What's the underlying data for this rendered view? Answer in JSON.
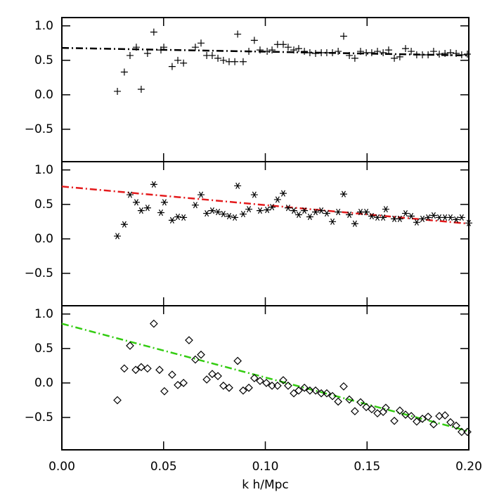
{
  "chart_data": [
    {
      "type": "scatter",
      "marker": "plus",
      "color": "#000000",
      "xlim": [
        0,
        0.2
      ],
      "ylim": [
        -0.97,
        1.12
      ],
      "xticks": [
        {
          "value": 0,
          "label": "0.00"
        },
        {
          "value": 0.05,
          "label": "0.05"
        },
        {
          "value": 0.1,
          "label": "0.10"
        },
        {
          "value": 0.15,
          "label": "0.15"
        },
        {
          "value": 0.2,
          "label": "0.20"
        }
      ],
      "yticks": [
        {
          "value": -0.5,
          "label": "−0.5"
        },
        {
          "value": 0,
          "label": "0.0"
        },
        0.5,
        {
          "value": 1,
          "label": "1.0"
        }
      ],
      "x": [
        0.0273,
        0.0307,
        0.0335,
        0.0366,
        0.039,
        0.0421,
        0.0452,
        0.0487,
        0.0501,
        0.0542,
        0.057,
        0.0598,
        0.0656,
        0.0684,
        0.0712,
        0.0739,
        0.0767,
        0.0794,
        0.0822,
        0.085,
        0.0864,
        0.0891,
        0.0919,
        0.0946,
        0.0974,
        0.1009,
        0.1033,
        0.106,
        0.1088,
        0.1112,
        0.114,
        0.1164,
        0.1192,
        0.1219,
        0.1247,
        0.1275,
        0.1302,
        0.133,
        0.1358,
        0.1385,
        0.1413,
        0.144,
        0.1468,
        0.1496,
        0.1523,
        0.1551,
        0.1579,
        0.1606,
        0.1634,
        0.1661,
        0.1689,
        0.1717,
        0.1744,
        0.1772,
        0.18,
        0.1827,
        0.1855,
        0.1883,
        0.191,
        0.1938,
        0.1965,
        0.1993
      ],
      "values": [
        0.05,
        0.33,
        0.57,
        0.69,
        0.08,
        0.6,
        0.91,
        0.65,
        0.69,
        0.41,
        0.5,
        0.46,
        0.69,
        0.75,
        0.57,
        0.57,
        0.53,
        0.5,
        0.48,
        0.48,
        0.88,
        0.48,
        0.63,
        0.79,
        0.65,
        0.63,
        0.65,
        0.73,
        0.73,
        0.69,
        0.65,
        0.67,
        0.63,
        0.61,
        0.6,
        0.61,
        0.61,
        0.61,
        0.63,
        0.85,
        0.57,
        0.53,
        0.63,
        0.61,
        0.61,
        0.63,
        0.61,
        0.65,
        0.53,
        0.55,
        0.67,
        0.63,
        0.58,
        0.58,
        0.58,
        0.63,
        0.59,
        0.6,
        0.61,
        0.6,
        0.58,
        0.59
      ],
      "fit": {
        "x": [
          0,
          0.2
        ],
        "values": [
          0.68,
          0.57
        ],
        "color": "#000000"
      }
    },
    {
      "type": "scatter",
      "marker": "asterisk",
      "color": "#000000",
      "xlim": [
        0,
        0.2
      ],
      "ylim": [
        -0.97,
        1.12
      ],
      "xticks": [
        {
          "value": 0,
          "label": "0.00"
        },
        {
          "value": 0.05,
          "label": "0.05"
        },
        {
          "value": 0.1,
          "label": "0.10"
        },
        {
          "value": 0.15,
          "label": "0.15"
        },
        {
          "value": 0.2,
          "label": "0.20"
        }
      ],
      "yticks": [
        {
          "value": -0.5,
          "label": "−0.5"
        },
        {
          "value": 0,
          "label": "0.0"
        },
        0.5,
        {
          "value": 1,
          "label": "1.0"
        }
      ],
      "x": [
        0.0273,
        0.0307,
        0.0335,
        0.0366,
        0.039,
        0.0421,
        0.0452,
        0.0487,
        0.0504,
        0.0542,
        0.057,
        0.0598,
        0.0656,
        0.0684,
        0.0712,
        0.0739,
        0.0767,
        0.0794,
        0.0822,
        0.085,
        0.0864,
        0.0891,
        0.0919,
        0.0946,
        0.0974,
        0.1009,
        0.1033,
        0.106,
        0.1088,
        0.1112,
        0.114,
        0.1164,
        0.1192,
        0.1219,
        0.1247,
        0.1275,
        0.1302,
        0.133,
        0.1358,
        0.1385,
        0.1413,
        0.144,
        0.1468,
        0.1496,
        0.1523,
        0.1551,
        0.1579,
        0.1592,
        0.1634,
        0.1661,
        0.1689,
        0.1717,
        0.1744,
        0.1772,
        0.18,
        0.1827,
        0.1855,
        0.1883,
        0.191,
        0.1938,
        0.1965,
        0.2
      ],
      "values": [
        0.04,
        0.21,
        0.64,
        0.53,
        0.41,
        0.45,
        0.79,
        0.38,
        0.53,
        0.27,
        0.32,
        0.31,
        0.49,
        0.64,
        0.37,
        0.41,
        0.39,
        0.36,
        0.33,
        0.31,
        0.77,
        0.36,
        0.43,
        0.64,
        0.41,
        0.42,
        0.46,
        0.57,
        0.66,
        0.45,
        0.41,
        0.35,
        0.41,
        0.32,
        0.39,
        0.41,
        0.37,
        0.25,
        0.39,
        0.65,
        0.35,
        0.22,
        0.39,
        0.39,
        0.33,
        0.31,
        0.31,
        0.43,
        0.29,
        0.29,
        0.37,
        0.33,
        0.24,
        0.29,
        0.31,
        0.34,
        0.31,
        0.31,
        0.31,
        0.28,
        0.31,
        0.23
      ],
      "fit": {
        "x": [
          0,
          0.2
        ],
        "values": [
          0.76,
          0.22
        ],
        "color": "#e41a1c"
      }
    },
    {
      "type": "scatter",
      "marker": "diamond",
      "color": "#000000",
      "xlim": [
        0,
        0.2
      ],
      "ylim": [
        -0.97,
        1.12
      ],
      "xticks": [
        {
          "value": 0,
          "label": "0.00"
        },
        {
          "value": 0.05,
          "label": "0.05"
        },
        {
          "value": 0.1,
          "label": "0.10"
        },
        {
          "value": 0.15,
          "label": "0.15"
        },
        {
          "value": 0.2,
          "label": "0.20"
        }
      ],
      "yticks": [
        {
          "value": -0.5,
          "label": "−0.5"
        },
        {
          "value": 0,
          "label": "0.0"
        },
        0.5,
        {
          "value": 1,
          "label": "1.0"
        }
      ],
      "xlabel": "k h/Mpc",
      "x": [
        0.0273,
        0.0307,
        0.0335,
        0.0363,
        0.039,
        0.0421,
        0.0452,
        0.048,
        0.0504,
        0.0542,
        0.057,
        0.0598,
        0.0625,
        0.0656,
        0.0684,
        0.0712,
        0.0739,
        0.0767,
        0.0794,
        0.0822,
        0.0864,
        0.0891,
        0.0919,
        0.0946,
        0.0974,
        0.1005,
        0.1033,
        0.106,
        0.1088,
        0.1112,
        0.114,
        0.1164,
        0.1192,
        0.1219,
        0.1247,
        0.1275,
        0.1302,
        0.133,
        0.1358,
        0.1385,
        0.1413,
        0.144,
        0.1468,
        0.1496,
        0.1523,
        0.1551,
        0.1579,
        0.1592,
        0.1634,
        0.1661,
        0.1689,
        0.1717,
        0.1744,
        0.1772,
        0.18,
        0.1827,
        0.1855,
        0.1883,
        0.191,
        0.1938,
        0.1965,
        0.1993
      ],
      "values": [
        -0.25,
        0.21,
        0.54,
        0.19,
        0.23,
        0.21,
        0.86,
        0.19,
        -0.12,
        0.12,
        -0.03,
        0.0,
        0.62,
        0.34,
        0.41,
        0.05,
        0.13,
        0.1,
        -0.04,
        -0.07,
        0.32,
        -0.11,
        -0.07,
        0.07,
        0.03,
        0.0,
        -0.04,
        -0.04,
        0.04,
        -0.04,
        -0.15,
        -0.11,
        -0.07,
        -0.11,
        -0.11,
        -0.15,
        -0.15,
        -0.19,
        -0.27,
        -0.05,
        -0.24,
        -0.41,
        -0.28,
        -0.35,
        -0.38,
        -0.44,
        -0.42,
        -0.36,
        -0.55,
        -0.4,
        -0.46,
        -0.48,
        -0.56,
        -0.52,
        -0.49,
        -0.6,
        -0.48,
        -0.47,
        -0.57,
        -0.62,
        -0.71,
        -0.71
      ],
      "fit": {
        "x": [
          0,
          0.2
        ],
        "values": [
          0.86,
          -0.7
        ],
        "color": "#33cc11"
      }
    }
  ]
}
